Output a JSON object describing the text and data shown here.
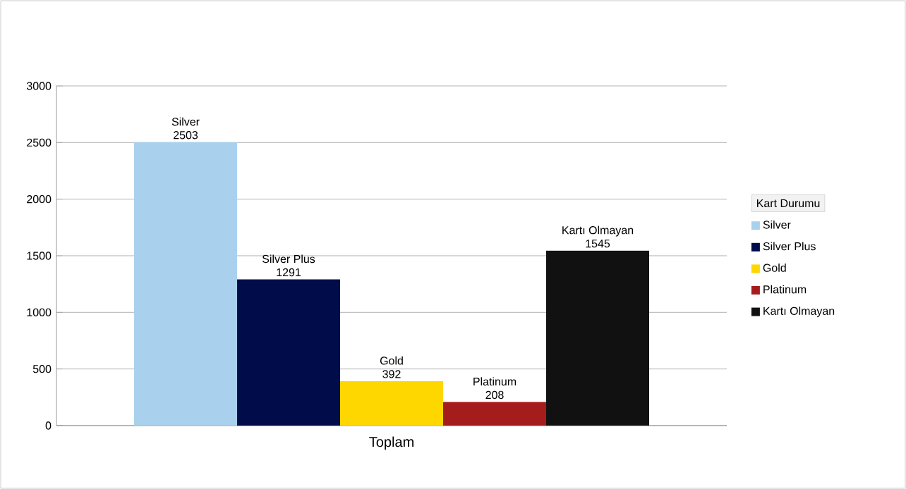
{
  "chart_data": {
    "type": "bar",
    "categories": [
      "Toplam"
    ],
    "legend_title": "Kart Durumu",
    "legend": "right",
    "grid": "y",
    "data_labels": true,
    "ylim": [
      0,
      3000
    ],
    "yticks": [
      0,
      500,
      1000,
      1500,
      2000,
      2500,
      3000
    ],
    "series": [
      {
        "name": "Silver",
        "color": "#a9d1ee",
        "values": [
          2503
        ]
      },
      {
        "name": "Silver Plus",
        "color": "#000d4a",
        "values": [
          1291
        ]
      },
      {
        "name": "Gold",
        "color": "#ffd700",
        "values": [
          392
        ]
      },
      {
        "name": "Platinum",
        "color": "#a51c1c",
        "values": [
          208
        ]
      },
      {
        "name": "Kartı Olmayan",
        "color": "#111111",
        "values": [
          1545
        ]
      }
    ]
  }
}
